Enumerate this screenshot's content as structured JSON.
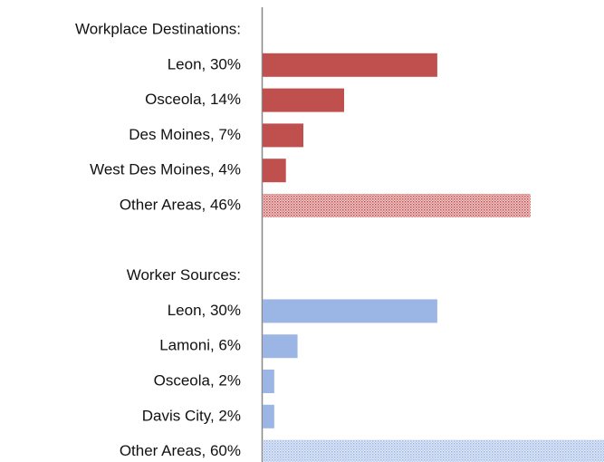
{
  "chart_data": {
    "type": "bar",
    "orientation": "horizontal",
    "categories": [
      "Workplace Destinations:",
      "Leon, 30%",
      "Osceola, 14%",
      "Des Moines, 7%",
      "West Des Moines, 4%",
      "Other Areas, 46%",
      null,
      "Worker Sources:",
      "Leon, 30%",
      "Lamoni, 6%",
      "Osceola, 2%",
      "Davis City, 2%",
      "Other Areas, 60%"
    ],
    "values": [
      null,
      30,
      14,
      7,
      4,
      46,
      null,
      null,
      30,
      6,
      2,
      2,
      60
    ],
    "colors": [
      null,
      "#c0504d",
      "#c0504d",
      "#c0504d",
      "#c0504d",
      "#c0504d",
      null,
      null,
      "#9bb5e4",
      "#9bb5e4",
      "#9bb5e4",
      "#9bb5e4",
      "#9bb5e4"
    ],
    "hatched": [
      false,
      false,
      false,
      false,
      false,
      true,
      false,
      false,
      false,
      false,
      false,
      false,
      true
    ]
  }
}
